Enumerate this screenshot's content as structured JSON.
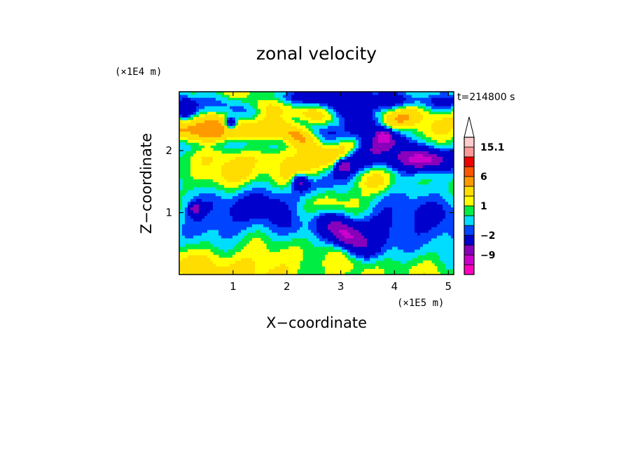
{
  "chart_data": {
    "type": "heatmap",
    "title": "zonal velocity",
    "xlabel": "X−coordinate",
    "ylabel": "Z−coordinate",
    "x_unit": "(×1E5 m)",
    "y_unit": "(×1E4 m)",
    "time_label": "t=214800 s",
    "xlim": [
      0,
      5.1
    ],
    "ylim": [
      0,
      2.95
    ],
    "x_ticks": [
      {
        "value": 1,
        "label": "1"
      },
      {
        "value": 2,
        "label": "2"
      },
      {
        "value": 3,
        "label": "3"
      },
      {
        "value": 4,
        "label": "4"
      },
      {
        "value": 5,
        "label": "5"
      }
    ],
    "y_ticks": [
      {
        "value": 1,
        "label": "1"
      },
      {
        "value": 2,
        "label": "2"
      }
    ],
    "colorbar": {
      "levels": [
        -15.1,
        -12,
        -9,
        -6,
        -2,
        -1,
        0,
        1,
        2,
        4,
        6,
        9,
        12,
        15.1
      ],
      "colors": [
        "#ff00c0",
        "#cc00cc",
        "#8800bb",
        "#0000cc",
        "#0044ff",
        "#00ddff",
        "#00ee44",
        "#ffff00",
        "#ffdd00",
        "#ff9900",
        "#ff5500",
        "#ee0000",
        "#ff9999",
        "#ffcccc"
      ],
      "labels": [
        {
          "value": 15.1,
          "label": "15.1"
        },
        {
          "value": 6,
          "label": "6"
        },
        {
          "value": 1,
          "label": "1"
        },
        {
          "value": -2,
          "label": "−2"
        },
        {
          "value": -9,
          "label": "−9"
        }
      ],
      "extend": "max"
    },
    "grid": false,
    "features": [
      {
        "x": 2.6,
        "z": 0.25,
        "sx": 3.5,
        "sz": 0.45,
        "a": 1.6,
        "rot": 0
      },
      {
        "x": 0.8,
        "z": 0.15,
        "sx": 1.0,
        "sz": 0.3,
        "a": 1.3,
        "rot": 0
      },
      {
        "x": 1.2,
        "z": 1.9,
        "sx": 1.4,
        "sz": 0.25,
        "a": 2.2,
        "rot": -0.25
      },
      {
        "x": 0.5,
        "z": 2.35,
        "sx": 0.9,
        "sz": 0.18,
        "a": 3.6,
        "rot": 0
      },
      {
        "x": 2.2,
        "z": 2.25,
        "sx": 0.5,
        "sz": 0.12,
        "a": 4.0,
        "rot": -0.5
      },
      {
        "x": 3.2,
        "z": 2.1,
        "sx": 1.1,
        "sz": 0.14,
        "a": 3.2,
        "rot": 0.45
      },
      {
        "x": 4.0,
        "z": 2.5,
        "sx": 1.6,
        "sz": 0.16,
        "a": 2.8,
        "rot": 0
      },
      {
        "x": 1.8,
        "z": 2.7,
        "sx": 1.6,
        "sz": 0.14,
        "a": 2.6,
        "rot": -0.2
      },
      {
        "x": 0.7,
        "z": 1.4,
        "sx": 0.8,
        "sz": 0.25,
        "a": 1.8,
        "rot": 0.3
      },
      {
        "x": 3.1,
        "z": 1.15,
        "sx": 0.35,
        "sz": 0.22,
        "a": 3.2,
        "rot": 0
      },
      {
        "x": 2.3,
        "z": 1.1,
        "sx": 0.3,
        "sz": 0.2,
        "a": 2.4,
        "rot": 0
      },
      {
        "x": 4.6,
        "z": 1.2,
        "sx": 0.5,
        "sz": 0.25,
        "a": 1.5,
        "rot": 0
      },
      {
        "x": 3.6,
        "z": 1.5,
        "sx": 0.3,
        "sz": 0.15,
        "a": 3.0,
        "rot": 0
      },
      {
        "x": 1.0,
        "z": 0.9,
        "sx": 1.4,
        "sz": 0.35,
        "a": -2.6,
        "rot": 0.1
      },
      {
        "x": 3.9,
        "z": 0.65,
        "sx": 1.2,
        "sz": 0.35,
        "a": -2.4,
        "rot": 0
      },
      {
        "x": 4.4,
        "z": 1.05,
        "sx": 0.8,
        "sz": 0.3,
        "a": -2.2,
        "rot": 0
      },
      {
        "x": 2.0,
        "z": 1.35,
        "sx": 1.2,
        "sz": 0.2,
        "a": -2.0,
        "rot": 0.1
      },
      {
        "x": 3.4,
        "z": 2.45,
        "sx": 0.4,
        "sz": 0.18,
        "a": -9.5,
        "rot": -0.4
      },
      {
        "x": 3.1,
        "z": 0.65,
        "sx": 0.35,
        "sz": 0.14,
        "a": -8.5,
        "rot": -0.5
      },
      {
        "x": 4.55,
        "z": 1.85,
        "sx": 0.3,
        "sz": 0.1,
        "a": -7.0,
        "rot": 0
      },
      {
        "x": 0.1,
        "z": 2.65,
        "sx": 0.15,
        "sz": 0.12,
        "a": -7.0,
        "rot": 0
      },
      {
        "x": 0.3,
        "z": 1.05,
        "sx": 0.08,
        "sz": 0.07,
        "a": -7.0,
        "rot": 0
      },
      {
        "x": 2.25,
        "z": 1.5,
        "sx": 0.1,
        "sz": 0.08,
        "a": -7.0,
        "rot": 0
      },
      {
        "x": 3.8,
        "z": 2.25,
        "sx": 0.1,
        "sz": 0.08,
        "a": -7.0,
        "rot": 0
      },
      {
        "x": 0.95,
        "z": 2.45,
        "sx": 0.08,
        "sz": 0.07,
        "a": -6.5,
        "rot": 0
      },
      {
        "x": 3.05,
        "z": 1.75,
        "sx": 0.1,
        "sz": 0.08,
        "a": -7.0,
        "rot": 0
      },
      {
        "x": 4.2,
        "z": 1.9,
        "sx": 1.0,
        "sz": 0.15,
        "a": -3.0,
        "rot": 0
      },
      {
        "x": 2.0,
        "z": 2.5,
        "sx": 1.5,
        "sz": 0.12,
        "a": -3.0,
        "rot": -0.2
      },
      {
        "x": 0.9,
        "z": 2.1,
        "sx": 0.9,
        "sz": 0.1,
        "a": -2.8,
        "rot": 0
      },
      {
        "x": 3.6,
        "z": 2.0,
        "sx": 0.8,
        "sz": 0.12,
        "a": -3.0,
        "rot": 0.5
      },
      {
        "x": 4.5,
        "z": 2.8,
        "sx": 1.0,
        "sz": 0.1,
        "a": -3.0,
        "rot": 0
      },
      {
        "x": 2.4,
        "z": 2.85,
        "sx": 0.8,
        "sz": 0.1,
        "a": -3.0,
        "rot": 0
      }
    ]
  }
}
